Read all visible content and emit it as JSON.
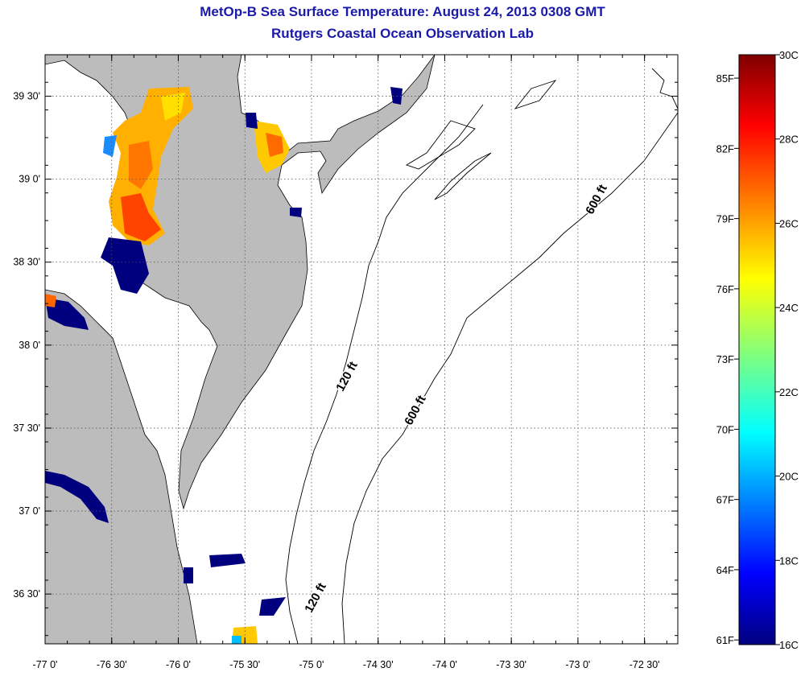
{
  "title": "MetOp-B Sea Surface Temperature:  August 24, 2013 0308 GMT",
  "subtitle": "Rutgers Coastal Ocean Observation Lab",
  "map": {
    "lon_range": [
      -77.0,
      -72.25
    ],
    "lat_range": [
      36.2,
      39.75
    ],
    "lon_ticks": [
      "-77 0'",
      "-76 30'",
      "-76 0'",
      "-75 30'",
      "-75 0'",
      "-74 30'",
      "-74 0'",
      "-73 30'",
      "-73 0'",
      "-72 30'"
    ],
    "lat_ticks": [
      "39 30'",
      "39 0'",
      "38 30'",
      "38 0'",
      "37 30'",
      "37 0'",
      "36 30'"
    ],
    "isobath_labels": [
      "600 ft",
      "120 ft",
      "600 ft",
      "120 ft"
    ],
    "colors": {
      "land": "#bcbcbc",
      "ocean": "#ffffff",
      "grid": "#666666"
    }
  },
  "colorbar": {
    "fahrenheit": [
      "85F",
      "82F",
      "79F",
      "76F",
      "73F",
      "70F",
      "67F",
      "64F",
      "61F"
    ],
    "celsius": [
      "30C",
      "28C",
      "26C",
      "24C",
      "22C",
      "20C",
      "18C",
      "16C"
    ],
    "min_c": 16,
    "max_c": 30
  }
}
